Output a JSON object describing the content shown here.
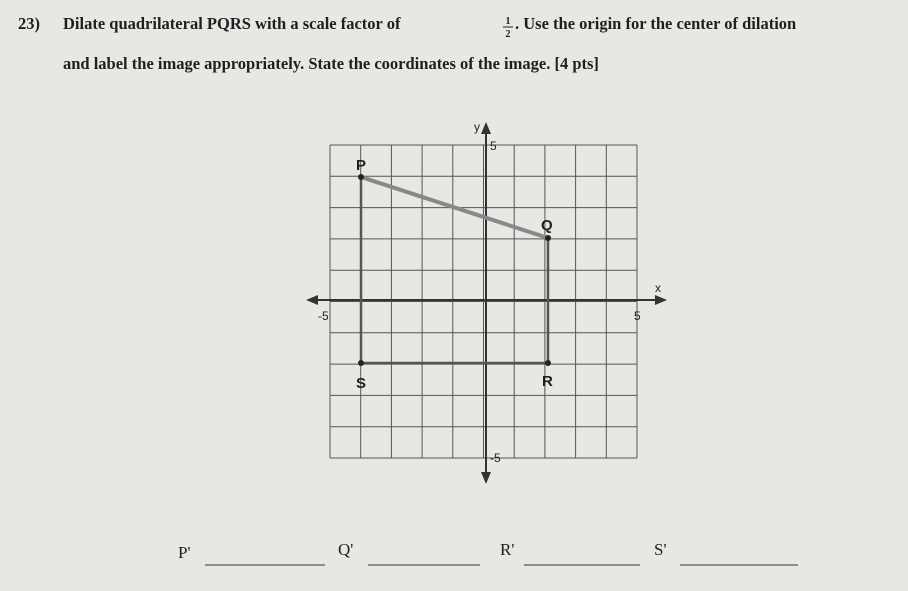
{
  "question": {
    "number": "23)",
    "text_before": "Dilate quadrilateral PQRS with a scale factor of",
    "fraction": {
      "numerator": "1",
      "denominator": "2"
    },
    "text_after_line1": ". Use the origin for the center of dilation",
    "text_line2": "and label the image appropriately.  State the coordinates of the image.  [4 pts]"
  },
  "graph": {
    "y_axis_label": "y",
    "x_axis_label": "x",
    "y_top_label": "5",
    "y_bottom_label": "-5",
    "x_left_label": "-5",
    "x_right_label": "5",
    "points": [
      "P",
      "Q",
      "R",
      "S"
    ]
  },
  "answers": [
    "P'",
    "Q'",
    "R'",
    "S'"
  ]
}
